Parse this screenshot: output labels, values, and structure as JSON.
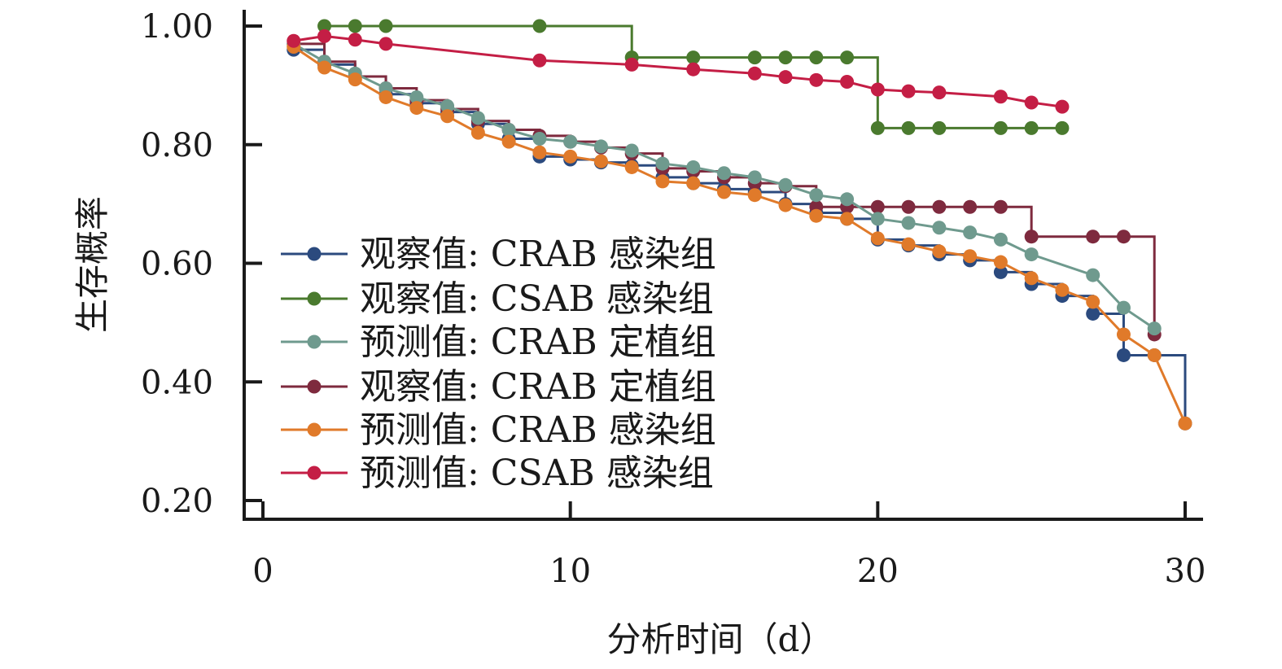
{
  "chart_data": {
    "type": "line",
    "title": "",
    "xlabel": "分析时间（d）",
    "ylabel": "生存概率",
    "xlim": [
      0,
      30
    ],
    "ylim": [
      0.2,
      1.0
    ],
    "x_ticks": [
      "0",
      "10",
      "20",
      "30"
    ],
    "y_ticks": [
      "0.20",
      "0.40",
      "0.60",
      "0.80",
      "1.00"
    ],
    "grid": false,
    "legend_position": "center-left",
    "series": [
      {
        "name": "观察值: CRAB 感染组",
        "color": "#2b4a7e",
        "step": true,
        "x": [
          1,
          2,
          3,
          4,
          5,
          6,
          7,
          8,
          9,
          10,
          11,
          12,
          13,
          14,
          15,
          16,
          17,
          18,
          19,
          20,
          21,
          22,
          23,
          24,
          25,
          26,
          27,
          28,
          29,
          30
        ],
        "y": [
          0.96,
          0.935,
          0.915,
          0.885,
          0.87,
          0.855,
          0.835,
          0.81,
          0.78,
          0.775,
          0.77,
          0.765,
          0.745,
          0.735,
          0.725,
          0.72,
          0.7,
          0.685,
          0.675,
          0.64,
          0.63,
          0.615,
          0.605,
          0.585,
          0.565,
          0.545,
          0.515,
          0.445,
          0.445,
          0.33
        ]
      },
      {
        "name": "观察值: CSAB 感染组",
        "color": "#4a7a2e",
        "step": true,
        "x": [
          2,
          3,
          4,
          9,
          12,
          14,
          16,
          17,
          18,
          19,
          20,
          21,
          22,
          24,
          25,
          26
        ],
        "y": [
          1.0,
          1.0,
          1.0,
          1.0,
          0.947,
          0.947,
          0.947,
          0.947,
          0.947,
          0.947,
          0.828,
          0.828,
          0.828,
          0.828,
          0.828,
          0.828
        ]
      },
      {
        "name": "预测值: CRAB 定植组",
        "color": "#6f9a8e",
        "step": false,
        "x": [
          1,
          2,
          3,
          4,
          5,
          6,
          7,
          8,
          9,
          10,
          11,
          12,
          13,
          14,
          15,
          16,
          17,
          18,
          19,
          20,
          21,
          22,
          23,
          24,
          25,
          27,
          28,
          29
        ],
        "y": [
          0.97,
          0.94,
          0.92,
          0.895,
          0.88,
          0.865,
          0.845,
          0.825,
          0.81,
          0.805,
          0.797,
          0.79,
          0.768,
          0.762,
          0.752,
          0.745,
          0.732,
          0.715,
          0.708,
          0.675,
          0.668,
          0.66,
          0.652,
          0.64,
          0.615,
          0.58,
          0.525,
          0.49
        ]
      },
      {
        "name": "观察值: CRAB 定植组",
        "color": "#7e2a3e",
        "step": true,
        "x": [
          1,
          2,
          3,
          4,
          5,
          6,
          7,
          8,
          9,
          10,
          11,
          12,
          13,
          14,
          15,
          16,
          17,
          18,
          19,
          20,
          21,
          22,
          23,
          24,
          25,
          27,
          28,
          29
        ],
        "y": [
          0.97,
          0.94,
          0.915,
          0.895,
          0.875,
          0.86,
          0.84,
          0.825,
          0.815,
          0.805,
          0.795,
          0.785,
          0.76,
          0.755,
          0.745,
          0.735,
          0.73,
          0.695,
          0.695,
          0.695,
          0.695,
          0.695,
          0.695,
          0.695,
          0.645,
          0.645,
          0.645,
          0.48
        ]
      },
      {
        "name": "预测值: CRAB 感染组",
        "color": "#e07a2a",
        "step": false,
        "x": [
          1,
          2,
          3,
          4,
          5,
          6,
          7,
          8,
          9,
          10,
          11,
          12,
          13,
          14,
          15,
          16,
          17,
          18,
          19,
          20,
          21,
          22,
          23,
          24,
          25,
          26,
          27,
          28,
          29,
          30
        ],
        "y": [
          0.965,
          0.93,
          0.91,
          0.88,
          0.862,
          0.848,
          0.82,
          0.805,
          0.787,
          0.78,
          0.772,
          0.762,
          0.738,
          0.735,
          0.72,
          0.715,
          0.698,
          0.68,
          0.675,
          0.642,
          0.632,
          0.62,
          0.612,
          0.602,
          0.575,
          0.555,
          0.535,
          0.48,
          0.445,
          0.33
        ]
      },
      {
        "name": "预测值: CSAB 感染组",
        "color": "#c41e45",
        "step": false,
        "x": [
          1,
          2,
          3,
          4,
          9,
          12,
          14,
          16,
          17,
          18,
          19,
          20,
          21,
          22,
          24,
          25,
          26
        ],
        "y": [
          0.975,
          0.983,
          0.977,
          0.97,
          0.942,
          0.935,
          0.927,
          0.92,
          0.914,
          0.909,
          0.906,
          0.893,
          0.89,
          0.888,
          0.881,
          0.871,
          0.864
        ]
      }
    ]
  }
}
